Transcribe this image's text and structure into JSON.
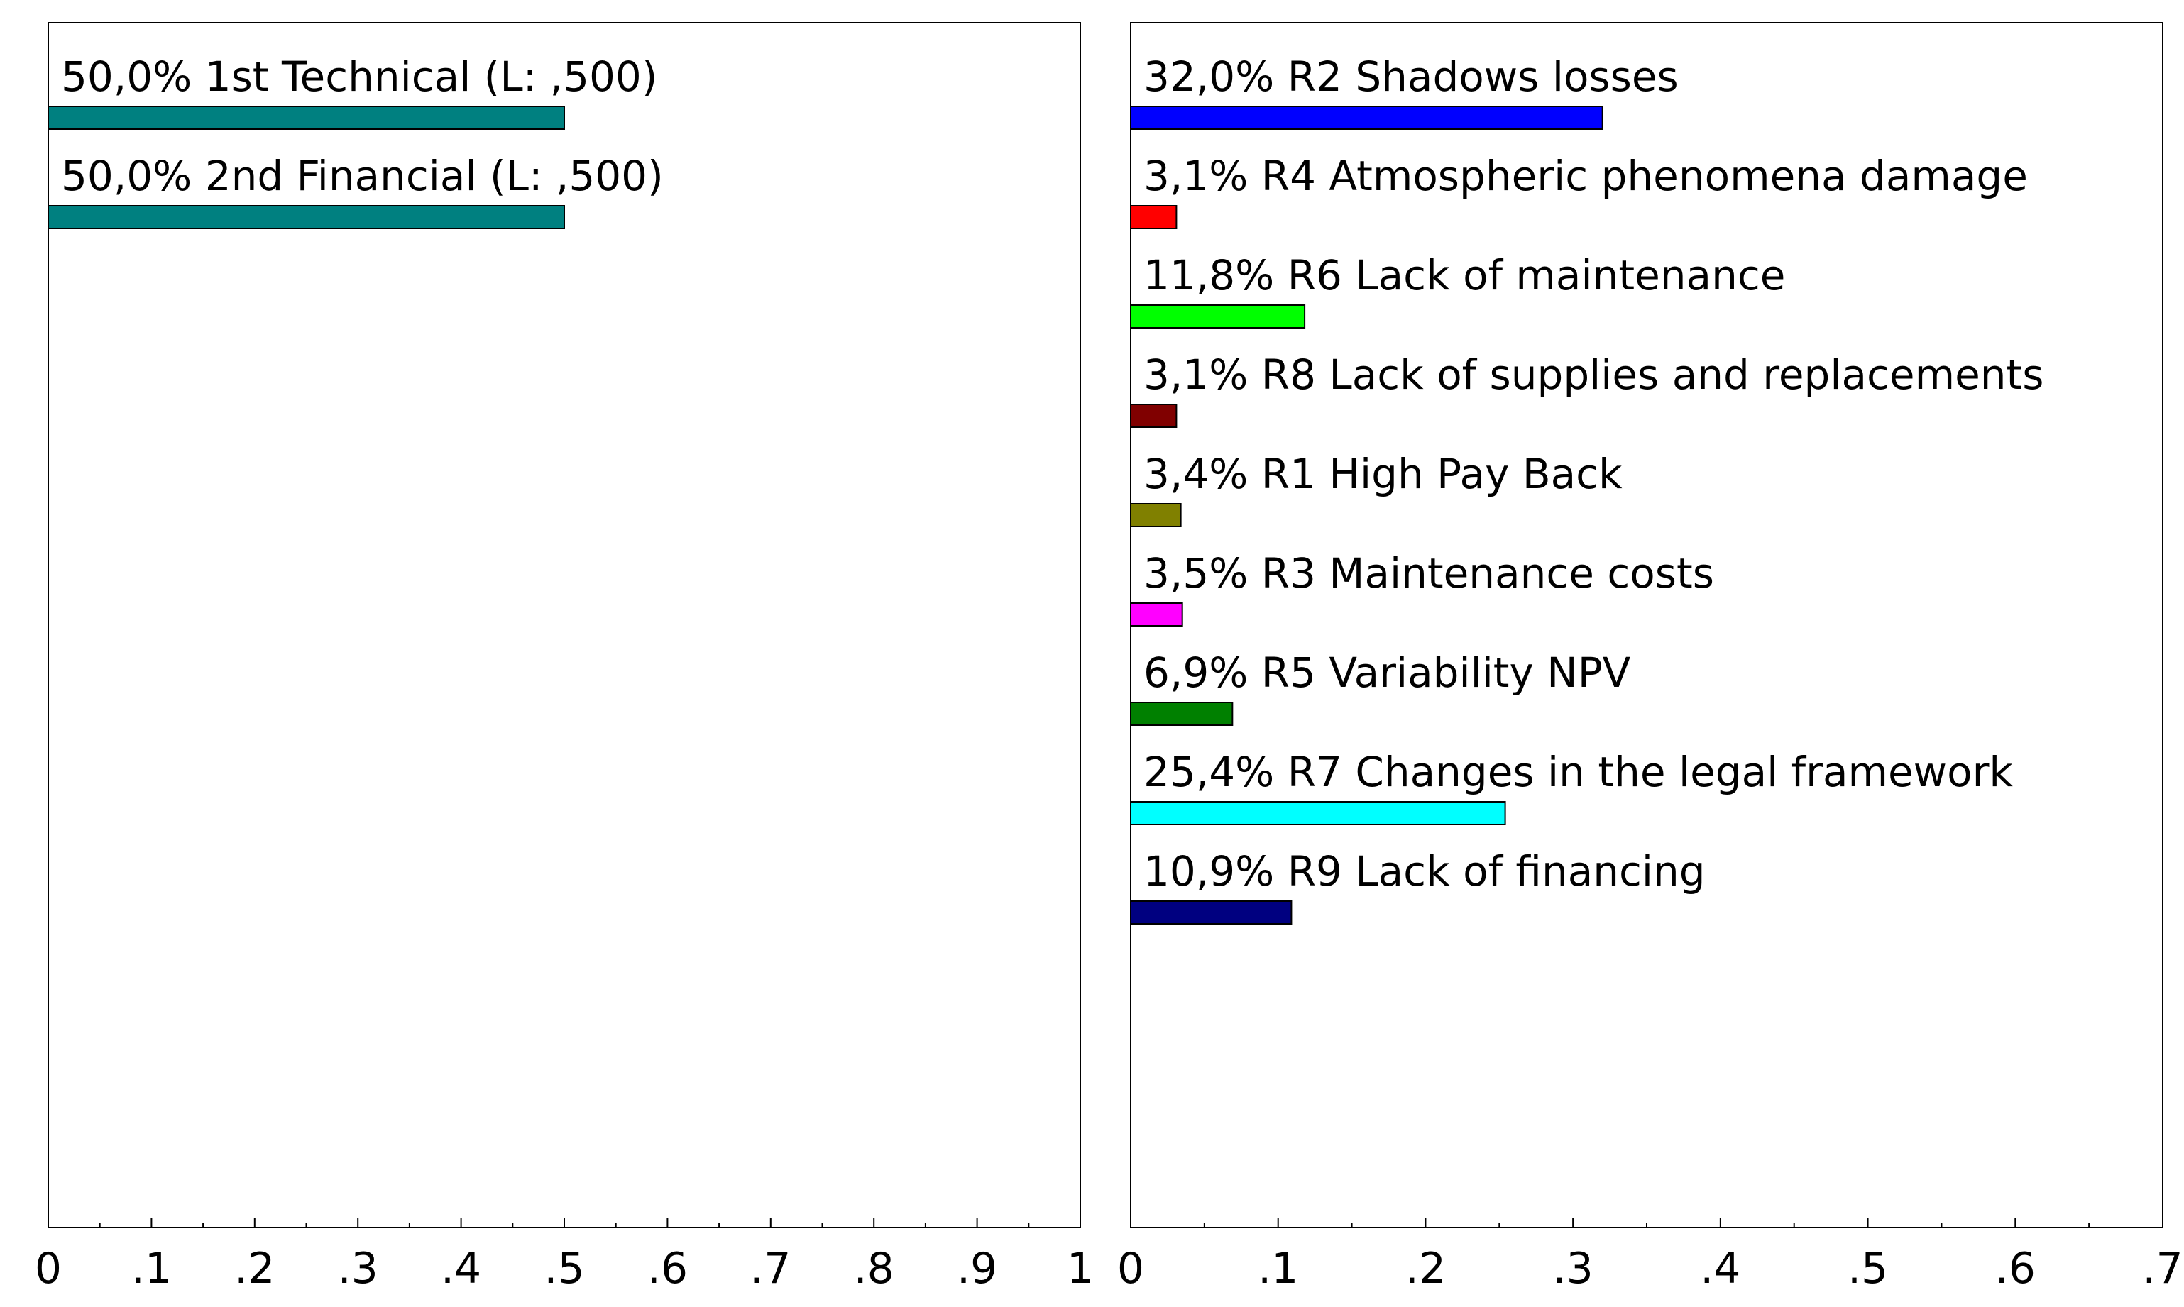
{
  "chart_data": [
    {
      "type": "bar",
      "orientation": "horizontal",
      "xlim": [
        0,
        1
      ],
      "ticks": [
        {
          "value": 0,
          "label": "0"
        },
        {
          "value": 0.1,
          "label": ".1"
        },
        {
          "value": 0.2,
          "label": ".2"
        },
        {
          "value": 0.3,
          "label": ".3"
        },
        {
          "value": 0.4,
          "label": ".4"
        },
        {
          "value": 0.5,
          "label": ".5"
        },
        {
          "value": 0.6,
          "label": ".6"
        },
        {
          "value": 0.7,
          "label": ".7"
        },
        {
          "value": 0.8,
          "label": ".8"
        },
        {
          "value": 0.9,
          "label": ".9"
        },
        {
          "value": 1,
          "label": "1"
        }
      ],
      "bars": [
        {
          "label": "50,0% 1st Technical (L: ,500)",
          "value": 0.5,
          "color": "#008080"
        },
        {
          "label": "50,0% 2nd Financial (L: ,500)",
          "value": 0.5,
          "color": "#008080"
        }
      ]
    },
    {
      "type": "bar",
      "orientation": "horizontal",
      "xlim": [
        0,
        0.7
      ],
      "ticks": [
        {
          "value": 0,
          "label": "0"
        },
        {
          "value": 0.1,
          "label": ".1"
        },
        {
          "value": 0.2,
          "label": ".2"
        },
        {
          "value": 0.3,
          "label": ".3"
        },
        {
          "value": 0.4,
          "label": ".4"
        },
        {
          "value": 0.5,
          "label": ".5"
        },
        {
          "value": 0.6,
          "label": ".6"
        },
        {
          "value": 0.7,
          "label": ".7"
        }
      ],
      "bars": [
        {
          "label": "32,0% R2 Shadows losses",
          "value": 0.32,
          "color": "#0000ff"
        },
        {
          "label": "3,1% R4 Atmospheric phenomena damage",
          "value": 0.031,
          "color": "#ff0000"
        },
        {
          "label": "11,8% R6 Lack of maintenance",
          "value": 0.118,
          "color": "#00ff00"
        },
        {
          "label": "3,1% R8 Lack of supplies and replacements",
          "value": 0.031,
          "color": "#800000"
        },
        {
          "label": "3,4% R1 High Pay Back",
          "value": 0.034,
          "color": "#808000"
        },
        {
          "label": "3,5% R3 Maintenance costs",
          "value": 0.035,
          "color": "#ff00ff"
        },
        {
          "label": "6,9% R5 Variability NPV",
          "value": 0.069,
          "color": "#008000"
        },
        {
          "label": "25,4% R7 Changes in the legal framework",
          "value": 0.254,
          "color": "#00ffff"
        },
        {
          "label": "10,9% R9 Lack of financing",
          "value": 0.109,
          "color": "#000080"
        }
      ]
    }
  ]
}
